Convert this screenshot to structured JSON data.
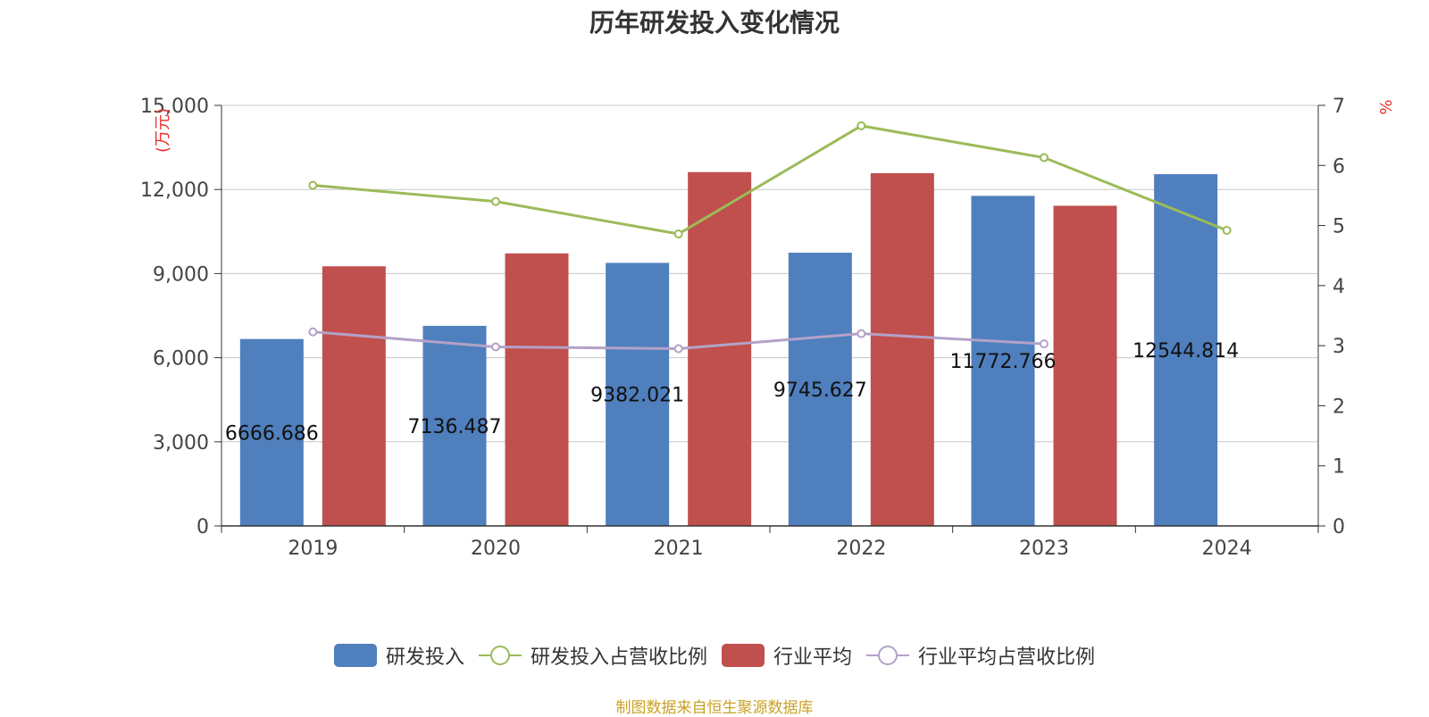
{
  "title": "历年研发投入变化情况",
  "source": "制图数据来自恒生聚源数据库",
  "colors": {
    "rd": "#4f7fbd",
    "rd_ratio": "#9bbb59",
    "industry": "#c0504d",
    "industry_ratio": "#b3a2c7",
    "unit": "#e8302c",
    "grid": "#c8c8c8",
    "axis": "#333333"
  },
  "chart_data": {
    "type": "bar",
    "categories": [
      "2019",
      "2020",
      "2021",
      "2022",
      "2023",
      "2024"
    ],
    "ylabel_left": "(万元)",
    "ylabel_right": "%",
    "ylim_left": [
      0,
      15000
    ],
    "ylim_right": [
      0,
      7
    ],
    "yticks_left": [
      "0",
      "3,000",
      "6,000",
      "9,000",
      "12,000",
      "15,000"
    ],
    "yticks_right": [
      "0",
      "1",
      "2",
      "3",
      "4",
      "5",
      "6",
      "7"
    ],
    "grid": true,
    "legend_position": "bottom",
    "series": [
      {
        "name": "研发投入",
        "kind": "bar",
        "axis": "left",
        "values": [
          6666.686,
          7136.487,
          9382.021,
          9745.627,
          11772.766,
          12544.814
        ],
        "labels": [
          "6666.686",
          "7136.487",
          "9382.021",
          "9745.627",
          "11772.766",
          "12544.814"
        ]
      },
      {
        "name": "研发投入占营收比例",
        "kind": "line",
        "axis": "right",
        "values": [
          5.67,
          5.4,
          4.86,
          6.66,
          6.13,
          4.92
        ]
      },
      {
        "name": "行业平均",
        "kind": "bar",
        "axis": "left",
        "values": [
          9260,
          9720,
          12620,
          12580,
          11420,
          null
        ]
      },
      {
        "name": "行业平均占营收比例",
        "kind": "line",
        "axis": "right",
        "values": [
          3.23,
          2.98,
          2.95,
          3.2,
          3.03,
          null
        ]
      }
    ]
  }
}
